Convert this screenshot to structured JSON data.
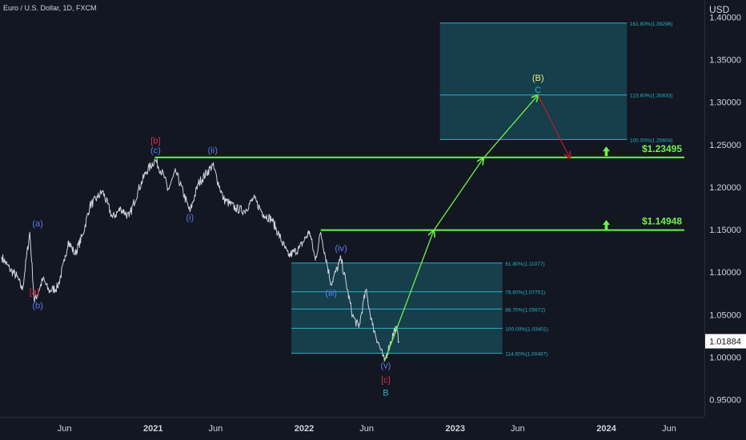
{
  "header": {
    "title": "Euro / U.S. Dollar, 1D, FXCM"
  },
  "axis": {
    "currency": "USD",
    "price_ticks": [
      "1.40000",
      "1.35000",
      "1.30000",
      "1.25000",
      "1.20000",
      "1.15000",
      "1.10000",
      "1.05000",
      "1.00000",
      "0.95000"
    ],
    "time_ticks": [
      {
        "label": "Jun",
        "bold": false
      },
      {
        "label": "2021",
        "bold": true
      },
      {
        "label": "Jun",
        "bold": false
      },
      {
        "label": "2022",
        "bold": true
      },
      {
        "label": "Jun",
        "bold": false
      },
      {
        "label": "2023",
        "bold": true
      },
      {
        "label": "Jun",
        "bold": false
      },
      {
        "label": "2024",
        "bold": true
      },
      {
        "label": "Jun",
        "bold": false
      }
    ],
    "current_price": "1.01884"
  },
  "colors": {
    "background": "#131722",
    "price_line": "#d1d4dc",
    "green": "#6ff24c",
    "red_label": "#d32f4f",
    "blue_label": "#5b7cf0",
    "teal_label": "#26b3c6",
    "yellow_label": "#e8f27a",
    "zone_fill": "#1a5f6e",
    "zone_line": "#26b3c6",
    "down_arrow": "#b71c2c"
  },
  "chart_data": {
    "type": "line",
    "series": [
      {
        "values": [
          [
            "2020-01-01",
            1.118
          ],
          [
            "2020-01-20",
            1.104
          ],
          [
            "2020-02-07",
            1.095
          ],
          [
            "2020-02-20",
            1.079
          ],
          [
            "2020-03-09",
            1.147
          ],
          [
            "2020-03-20",
            1.065
          ],
          [
            "2020-04-10",
            1.092
          ],
          [
            "2020-04-24",
            1.078
          ],
          [
            "2020-05-15",
            1.082
          ],
          [
            "2020-06-01",
            1.113
          ],
          [
            "2020-06-10",
            1.137
          ],
          [
            "2020-06-26",
            1.121
          ],
          [
            "2020-07-15",
            1.144
          ],
          [
            "2020-08-01",
            1.178
          ],
          [
            "2020-08-20",
            1.188
          ],
          [
            "2020-09-01",
            1.195
          ],
          [
            "2020-09-25",
            1.164
          ],
          [
            "2020-10-15",
            1.175
          ],
          [
            "2020-11-04",
            1.165
          ],
          [
            "2020-11-25",
            1.195
          ],
          [
            "2020-12-15",
            1.218
          ],
          [
            "2021-01-06",
            1.232
          ],
          [
            "2021-01-29",
            1.211
          ],
          [
            "2021-02-05",
            1.196
          ],
          [
            "2021-02-25",
            1.218
          ],
          [
            "2021-03-31",
            1.171
          ],
          [
            "2021-04-20",
            1.204
          ],
          [
            "2021-05-25",
            1.226
          ],
          [
            "2021-06-20",
            1.186
          ],
          [
            "2021-07-20",
            1.175
          ],
          [
            "2021-08-10",
            1.172
          ],
          [
            "2021-09-01",
            1.187
          ],
          [
            "2021-09-25",
            1.168
          ],
          [
            "2021-10-15",
            1.162
          ],
          [
            "2021-11-24",
            1.119
          ],
          [
            "2021-12-20",
            1.128
          ],
          [
            "2022-01-14",
            1.148
          ],
          [
            "2022-01-28",
            1.114
          ],
          [
            "2022-02-10",
            1.147
          ],
          [
            "2022-03-07",
            1.086
          ],
          [
            "2022-03-31",
            1.116
          ],
          [
            "2022-04-28",
            1.049
          ],
          [
            "2022-05-13",
            1.035
          ],
          [
            "2022-05-30",
            1.079
          ],
          [
            "2022-06-15",
            1.038
          ],
          [
            "2022-07-14",
            0.9953
          ],
          [
            "2022-08-10",
            1.036
          ],
          [
            "2022-08-18",
            1.0188
          ]
        ]
      }
    ],
    "ylim": [
      0.93,
      1.42
    ],
    "xlim": [
      "2019-12-28",
      "2024-08-25"
    ],
    "horizontal_levels": [
      {
        "price": 1.23495,
        "label": "$1.23495",
        "start": "2021-01-05"
      },
      {
        "price": 1.14948,
        "label": "$1.14948",
        "start": "2022-02-10"
      }
    ],
    "fib_zones": [
      {
        "x_start": "2021-12-01",
        "x_end": "2023-04-25",
        "label_x": "2023-05-02",
        "levels": [
          {
            "price": 1.11077,
            "label": "61.80%(1.11077)"
          },
          {
            "price": 1.07701,
            "label": "78.60%(1.07701)"
          },
          {
            "price": 1.05672,
            "label": "88.70%(1.05672)"
          },
          {
            "price": 1.03401,
            "label": "100.00%(1.03401)"
          },
          {
            "price": 1.00467,
            "label": "114.60%(1.00467)"
          }
        ]
      },
      {
        "x_start": "2022-11-25",
        "x_end": "2024-02-20",
        "label_x": "2024-02-27",
        "levels": [
          {
            "price": 1.39296,
            "label": "161.80%(1.39296)"
          },
          {
            "price": 1.30833,
            "label": "123.60%(1.30833)"
          },
          {
            "price": 1.25604,
            "label": "100.00%(1.25604)"
          }
        ]
      }
    ],
    "projection_path": [
      [
        "2022-07-14",
        0.9953
      ],
      [
        "2022-11-10",
        1.149
      ],
      [
        "2023-03-10",
        1.234
      ],
      [
        "2023-07-20",
        1.3083
      ]
    ],
    "down_projection": [
      [
        "2023-07-20",
        1.3083
      ],
      [
        "2023-10-05",
        1.234
      ]
    ],
    "up_markers": [
      {
        "date": "2024-01-01",
        "price": 1.152
      },
      {
        "date": "2024-01-01",
        "price": 1.2384
      }
    ],
    "wave_labels": [
      {
        "text": "[a]",
        "date": "2020-03-20",
        "price": 1.0735,
        "color": "red"
      },
      {
        "text": "(b)",
        "date": "2020-03-28",
        "price": 1.0575,
        "color": "blue"
      },
      {
        "text": "(a)",
        "date": "2020-03-28",
        "price": 1.154,
        "color": "blue"
      },
      {
        "text": "[b]",
        "date": "2021-01-07",
        "price": 1.251,
        "color": "red"
      },
      {
        "text": "(c)",
        "date": "2021-01-07",
        "price": 1.24,
        "color": "blue"
      },
      {
        "text": "(ii)",
        "date": "2021-05-25",
        "price": 1.24,
        "color": "blue"
      },
      {
        "text": "(i)",
        "date": "2021-03-31",
        "price": 1.161,
        "color": "blue"
      },
      {
        "text": "(iv)",
        "date": "2022-03-31",
        "price": 1.1245,
        "color": "blue"
      },
      {
        "text": "(iii)",
        "date": "2022-03-07",
        "price": 1.072,
        "color": "blue"
      },
      {
        "text": "(v)",
        "date": "2022-07-17",
        "price": 0.987,
        "color": "blue"
      },
      {
        "text": "[c]",
        "date": "2022-07-17",
        "price": 0.97,
        "color": "red"
      },
      {
        "text": "B",
        "date": "2022-07-17",
        "price": 0.955,
        "color": "teal"
      },
      {
        "text": "(B)",
        "date": "2023-07-20",
        "price": 1.325,
        "color": "yellow"
      },
      {
        "text": "C",
        "date": "2023-07-20",
        "price": 1.311,
        "color": "teal"
      }
    ]
  }
}
